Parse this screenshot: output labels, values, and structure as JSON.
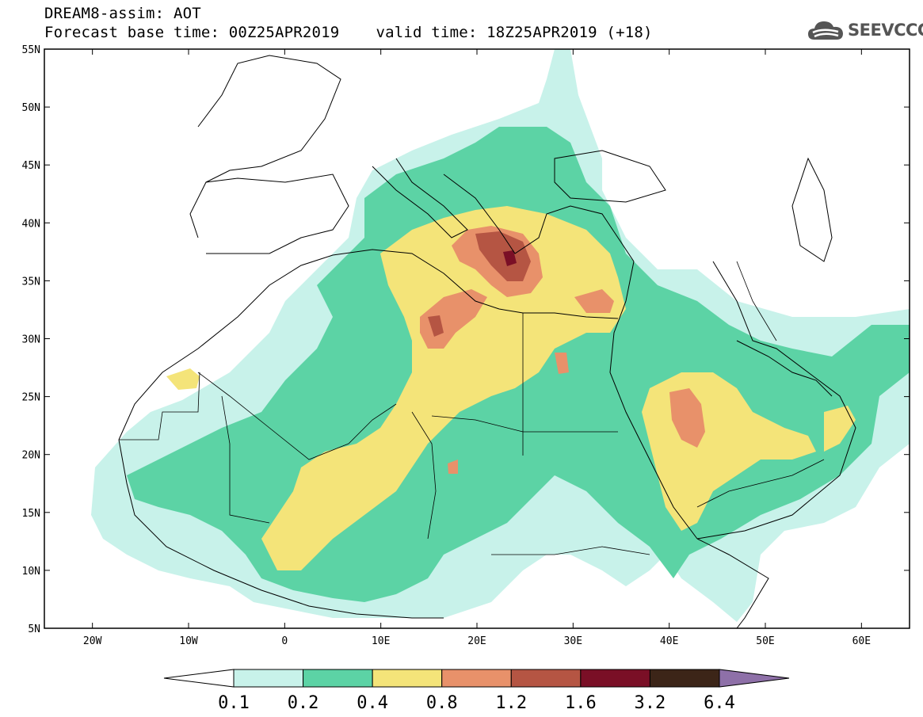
{
  "header": {
    "line1": "DREAM8-assim: AOT",
    "base_time": "Forecast base time: 00Z25APR2019",
    "valid_time": "valid time: 18Z25APR2019 (+18)"
  },
  "logo": {
    "text": "SEEVCCC",
    "icon": "cloud-icon"
  },
  "map": {
    "lon_range": [
      -25,
      65
    ],
    "lat_range": [
      5,
      55
    ],
    "x_ticks": [
      {
        "lon": -20,
        "label": "20W"
      },
      {
        "lon": -10,
        "label": "10W"
      },
      {
        "lon": 0,
        "label": "0"
      },
      {
        "lon": 10,
        "label": "10E"
      },
      {
        "lon": 20,
        "label": "20E"
      },
      {
        "lon": 30,
        "label": "30E"
      },
      {
        "lon": 40,
        "label": "40E"
      },
      {
        "lon": 50,
        "label": "50E"
      },
      {
        "lon": 60,
        "label": "60E"
      }
    ],
    "y_ticks": [
      {
        "lat": 55,
        "label": "55N"
      },
      {
        "lat": 50,
        "label": "50N"
      },
      {
        "lat": 45,
        "label": "45N"
      },
      {
        "lat": 40,
        "label": "40N"
      },
      {
        "lat": 35,
        "label": "35N"
      },
      {
        "lat": 30,
        "label": "30N"
      },
      {
        "lat": 25,
        "label": "25N"
      },
      {
        "lat": 20,
        "label": "20N"
      },
      {
        "lat": 15,
        "label": "15N"
      },
      {
        "lat": 10,
        "label": "10N"
      },
      {
        "lat": 5,
        "label": "5N"
      }
    ]
  },
  "colorbar": {
    "levels": [
      "0.1",
      "0.2",
      "0.4",
      "0.8",
      "1.2",
      "1.6",
      "3.2",
      "6.4"
    ],
    "colors": [
      "#c8f2ea",
      "#5cd3a5",
      "#f4e479",
      "#e8916a",
      "#b55543",
      "#7a0f26",
      "#3c2518"
    ],
    "under_color": "#ffffff",
    "over_color": "#8e70a8"
  }
}
